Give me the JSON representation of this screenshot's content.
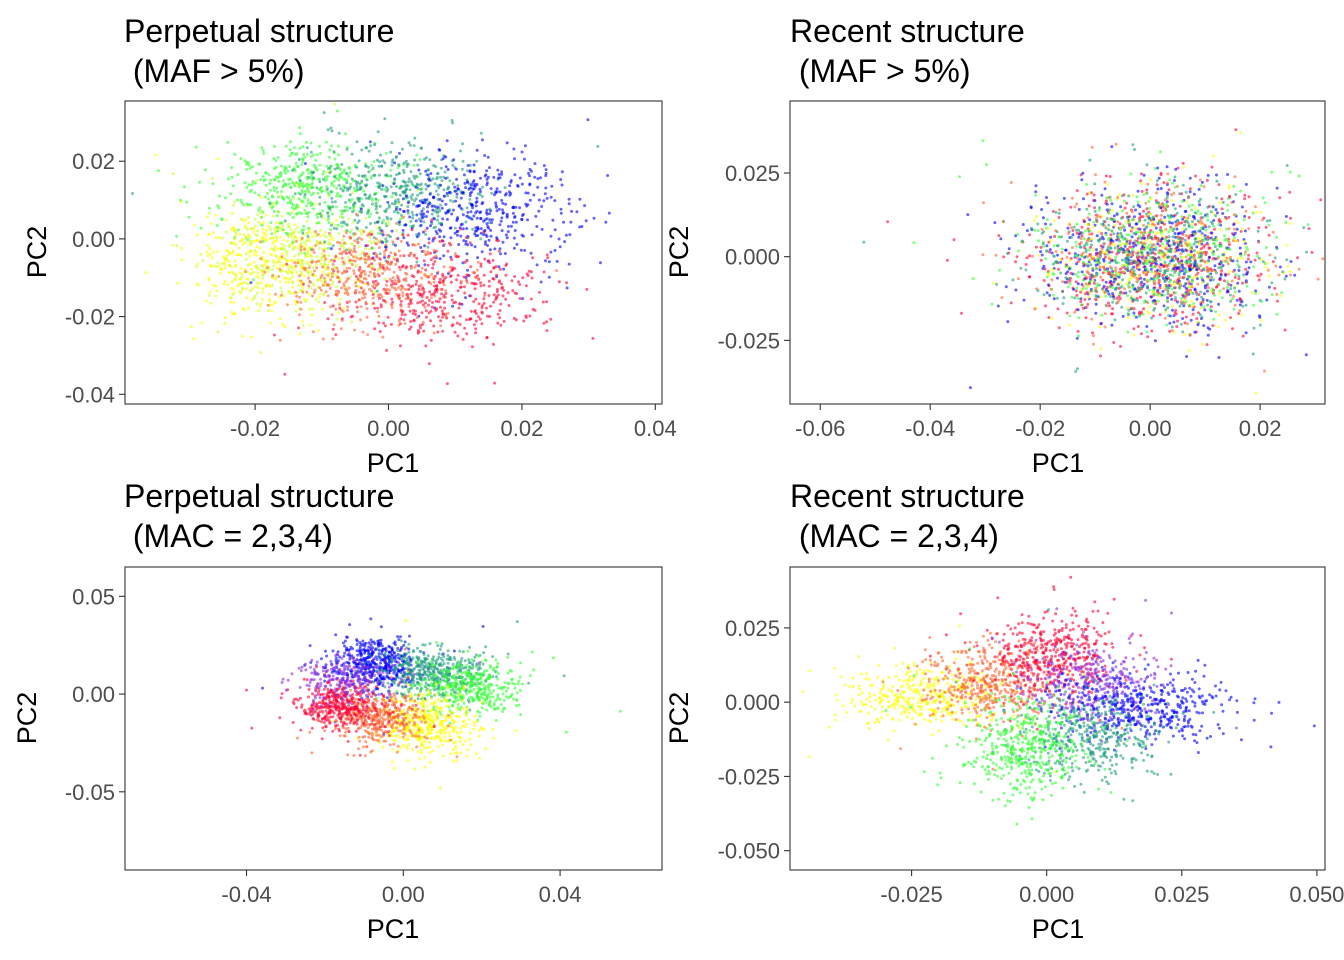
{
  "chart_data": [
    {
      "type": "scatter",
      "title_line1": "Perpetual structure",
      "title_line2": " (MAF > 5%)",
      "xlabel": "PC1",
      "ylabel": "PC2",
      "xlim": [
        -0.0395,
        0.041
      ],
      "ylim": [
        -0.0425,
        0.0355
      ],
      "xticks": [
        -0.02,
        0.0,
        0.02,
        0.04
      ],
      "xtick_labels": [
        "-0.02",
        "0.00",
        "0.02",
        "0.04"
      ],
      "yticks": [
        -0.04,
        -0.02,
        0.0,
        0.02
      ],
      "ytick_labels": [
        "-0.04",
        "-0.02",
        "0.00",
        "0.02"
      ],
      "grid": false,
      "point_colors": [
        "#ffff00",
        "#ccff33",
        "#33ff33",
        "#1f9f7f",
        "#0000ff",
        "#ff0033",
        "#ff6633"
      ],
      "clusters": [
        {
          "color": "#ffff00",
          "cx": -0.019,
          "cy": -0.007,
          "sx": 0.0055,
          "sy": 0.007,
          "n": 380
        },
        {
          "color": "#ccff33",
          "cx": -0.012,
          "cy": -0.003,
          "sx": 0.006,
          "sy": 0.007,
          "n": 380
        },
        {
          "color": "#33ff33",
          "cx": -0.012,
          "cy": 0.013,
          "sx": 0.0065,
          "sy": 0.006,
          "n": 440
        },
        {
          "color": "#1f9f7f",
          "cx": 0.001,
          "cy": 0.012,
          "sx": 0.007,
          "sy": 0.0065,
          "n": 440
        },
        {
          "color": "#0000ff",
          "cx": 0.013,
          "cy": 0.007,
          "sx": 0.007,
          "sy": 0.0075,
          "n": 460
        },
        {
          "color": "#ff0033",
          "cx": 0.008,
          "cy": -0.014,
          "sx": 0.0075,
          "sy": 0.0065,
          "n": 430
        },
        {
          "color": "#ff6633",
          "cx": -0.003,
          "cy": -0.009,
          "sx": 0.0065,
          "sy": 0.006,
          "n": 380
        }
      ]
    },
    {
      "type": "scatter",
      "title_line1": "Recent structure",
      "title_line2": " (MAF > 5%)",
      "xlabel": "PC1",
      "ylabel": "PC2",
      "xlim": [
        -0.0655,
        0.0318
      ],
      "ylim": [
        -0.044,
        0.0465
      ],
      "xticks": [
        -0.06,
        -0.04,
        -0.02,
        0.0,
        0.02
      ],
      "xtick_labels": [
        "-0.06",
        "-0.04",
        "-0.02",
        "0.00",
        "0.02"
      ],
      "yticks": [
        -0.025,
        0.0,
        0.025
      ],
      "ytick_labels": [
        "-0.025",
        "0.000",
        "0.025"
      ],
      "grid": false,
      "point_colors": [
        "#ff0033",
        "#0000ff",
        "#33ff33",
        "#ffff00",
        "#1f9f7f",
        "#ff6633"
      ],
      "clusters": [
        {
          "color": "#ff0033",
          "cx": 0.0,
          "cy": 0.0,
          "sx": 0.0105,
          "sy": 0.0105,
          "n": 520
        },
        {
          "color": "#0000ff",
          "cx": 0.0,
          "cy": 0.0,
          "sx": 0.0105,
          "sy": 0.0105,
          "n": 520
        },
        {
          "color": "#33ff33",
          "cx": 0.0,
          "cy": 0.0,
          "sx": 0.011,
          "sy": 0.0105,
          "n": 380
        },
        {
          "color": "#ffff00",
          "cx": 0.0,
          "cy": 0.0,
          "sx": 0.011,
          "sy": 0.0105,
          "n": 240
        },
        {
          "color": "#1f9f7f",
          "cx": 0.0,
          "cy": 0.0,
          "sx": 0.0105,
          "sy": 0.0105,
          "n": 360
        },
        {
          "color": "#ff6633",
          "cx": 0.0,
          "cy": 0.0,
          "sx": 0.0105,
          "sy": 0.0105,
          "n": 240
        }
      ]
    },
    {
      "type": "scatter",
      "title_line1": "Perpetual structure",
      "title_line2": " (MAC = 2,3,4)",
      "xlabel": "PC1",
      "ylabel": "PC2",
      "xlim": [
        -0.071,
        0.066
      ],
      "ylim": [
        -0.09,
        0.065
      ],
      "xticks": [
        -0.04,
        0.0,
        0.04
      ],
      "xtick_labels": [
        "-0.04",
        "0.00",
        "0.04"
      ],
      "yticks": [
        -0.05,
        0.0,
        0.05
      ],
      "ytick_labels": [
        "-0.05",
        "0.00",
        "0.05"
      ],
      "grid": false,
      "point_colors": [
        "#0000ff",
        "#1f9f7f",
        "#33ff33",
        "#ffff00",
        "#ff6633",
        "#ff0033",
        "#8a2be2"
      ],
      "clusters": [
        {
          "color": "#0000ff",
          "cx": -0.007,
          "cy": 0.016,
          "sx": 0.0055,
          "sy": 0.0065,
          "n": 460
        },
        {
          "color": "#1f9f7f",
          "cx": 0.008,
          "cy": 0.011,
          "sx": 0.007,
          "sy": 0.006,
          "n": 420
        },
        {
          "color": "#33ff33",
          "cx": 0.017,
          "cy": 0.003,
          "sx": 0.0065,
          "sy": 0.0065,
          "n": 380
        },
        {
          "color": "#ffff00",
          "cx": 0.006,
          "cy": -0.016,
          "sx": 0.006,
          "sy": 0.0075,
          "n": 420
        },
        {
          "color": "#ff6633",
          "cx": -0.007,
          "cy": -0.012,
          "sx": 0.0065,
          "sy": 0.0065,
          "n": 380
        },
        {
          "color": "#ff0033",
          "cx": -0.016,
          "cy": -0.006,
          "sx": 0.0055,
          "sy": 0.006,
          "n": 380
        },
        {
          "color": "#8a2be2",
          "cx": -0.016,
          "cy": 0.008,
          "sx": 0.006,
          "sy": 0.006,
          "n": 220
        }
      ]
    },
    {
      "type": "scatter",
      "title_line1": "Recent structure",
      "title_line2": " (MAC = 2,3,4)",
      "xlabel": "PC1",
      "ylabel": "PC2",
      "xlim": [
        -0.0475,
        0.0515
      ],
      "ylim": [
        -0.0565,
        0.0455
      ],
      "xticks": [
        -0.025,
        0.0,
        0.025,
        0.05
      ],
      "xtick_labels": [
        "-0.025",
        "0.000",
        "0.025",
        "0.050"
      ],
      "yticks": [
        -0.05,
        -0.025,
        0.0,
        0.025
      ],
      "ytick_labels": [
        "-0.050",
        "-0.025",
        "0.000",
        "0.025"
      ],
      "grid": false,
      "point_colors": [
        "#ffff00",
        "#ff6633",
        "#ff0033",
        "#8a2be2",
        "#0000ff",
        "#1f9f7f",
        "#33ff33"
      ],
      "clusters": [
        {
          "color": "#ffff00",
          "cx": -0.022,
          "cy": 0.002,
          "sx": 0.0075,
          "sy": 0.0055,
          "n": 400
        },
        {
          "color": "#ff6633",
          "cx": -0.011,
          "cy": 0.006,
          "sx": 0.006,
          "sy": 0.0065,
          "n": 420
        },
        {
          "color": "#ff0033",
          "cx": 0.001,
          "cy": 0.016,
          "sx": 0.0055,
          "sy": 0.007,
          "n": 440
        },
        {
          "color": "#8a2be2",
          "cx": 0.008,
          "cy": 0.006,
          "sx": 0.006,
          "sy": 0.007,
          "n": 340
        },
        {
          "color": "#0000ff",
          "cx": 0.018,
          "cy": -0.002,
          "sx": 0.0075,
          "sy": 0.0055,
          "n": 440
        },
        {
          "color": "#1f9f7f",
          "cx": 0.008,
          "cy": -0.013,
          "sx": 0.006,
          "sy": 0.0065,
          "n": 380
        },
        {
          "color": "#33ff33",
          "cx": -0.004,
          "cy": -0.016,
          "sx": 0.0055,
          "sy": 0.008,
          "n": 440
        }
      ]
    }
  ]
}
